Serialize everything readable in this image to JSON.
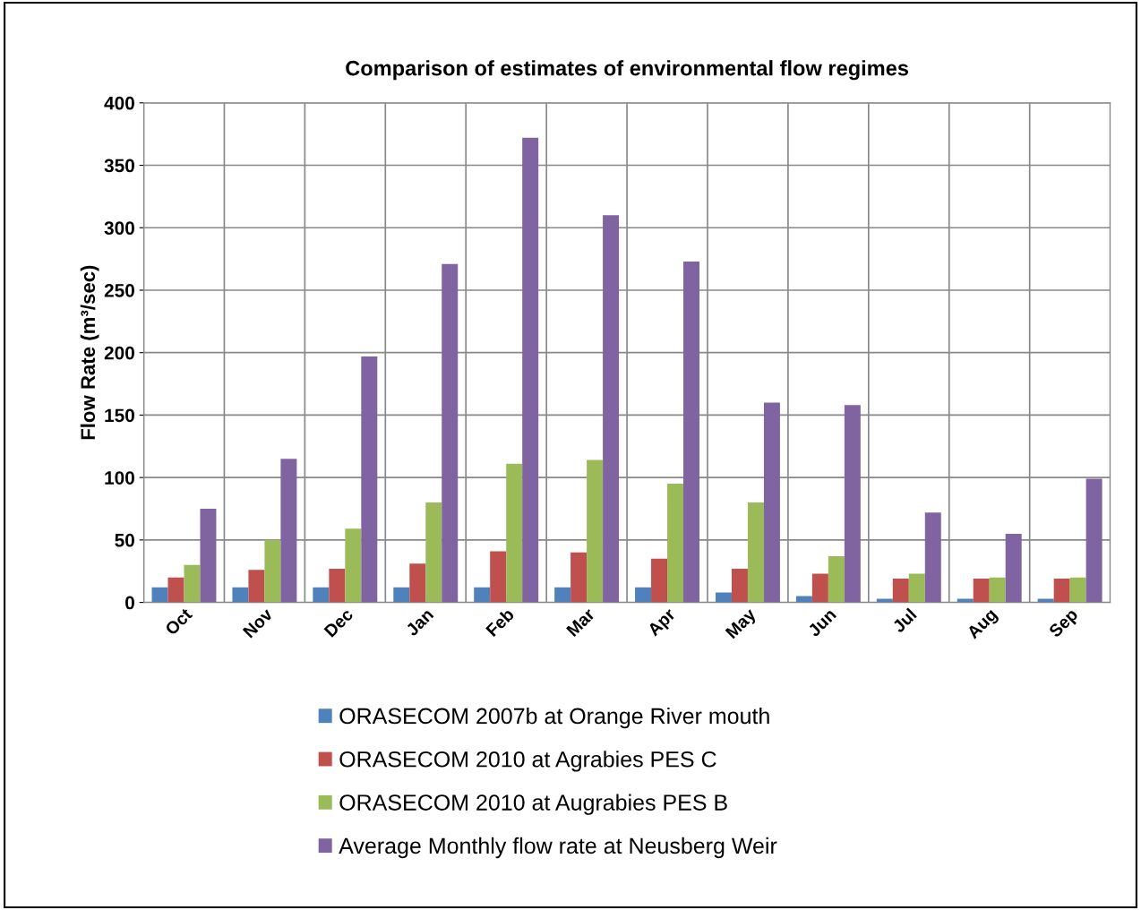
{
  "chart_data": {
    "type": "bar",
    "title": "Comparison of estimates of environmental flow regimes",
    "ylabel": "Flow Rate (m³/sec)",
    "categories": [
      "Oct",
      "Nov",
      "Dec",
      "Jan",
      "Feb",
      "Mar",
      "Apr",
      "May",
      "Jun",
      "Jul",
      "Aug",
      "Sep"
    ],
    "series": [
      {
        "name": "ORASECOM 2007b at Orange River mouth",
        "color": "#4f81bd",
        "values": [
          12,
          12,
          12,
          12,
          12,
          12,
          12,
          8,
          5,
          3,
          3,
          3
        ]
      },
      {
        "name": "ORASECOM 2010 at Agrabies PES C",
        "color": "#c0504d",
        "values": [
          20,
          26,
          27,
          31,
          41,
          40,
          35,
          27,
          23,
          19,
          19,
          19
        ]
      },
      {
        "name": "ORASECOM 2010 at Augrabies PES B",
        "color": "#9bbb59",
        "values": [
          30,
          50,
          59,
          80,
          111,
          114,
          95,
          80,
          37,
          23,
          20,
          20
        ]
      },
      {
        "name": "Average Monthly flow rate at Neusberg Weir",
        "color": "#8064a2",
        "values": [
          75,
          115,
          197,
          271,
          372,
          310,
          273,
          160,
          158,
          72,
          55,
          99
        ]
      }
    ],
    "ylim": [
      0,
      400
    ],
    "yticks": [
      0,
      50,
      100,
      150,
      200,
      250,
      300,
      350,
      400
    ],
    "grid": true,
    "legend": "bottom"
  }
}
